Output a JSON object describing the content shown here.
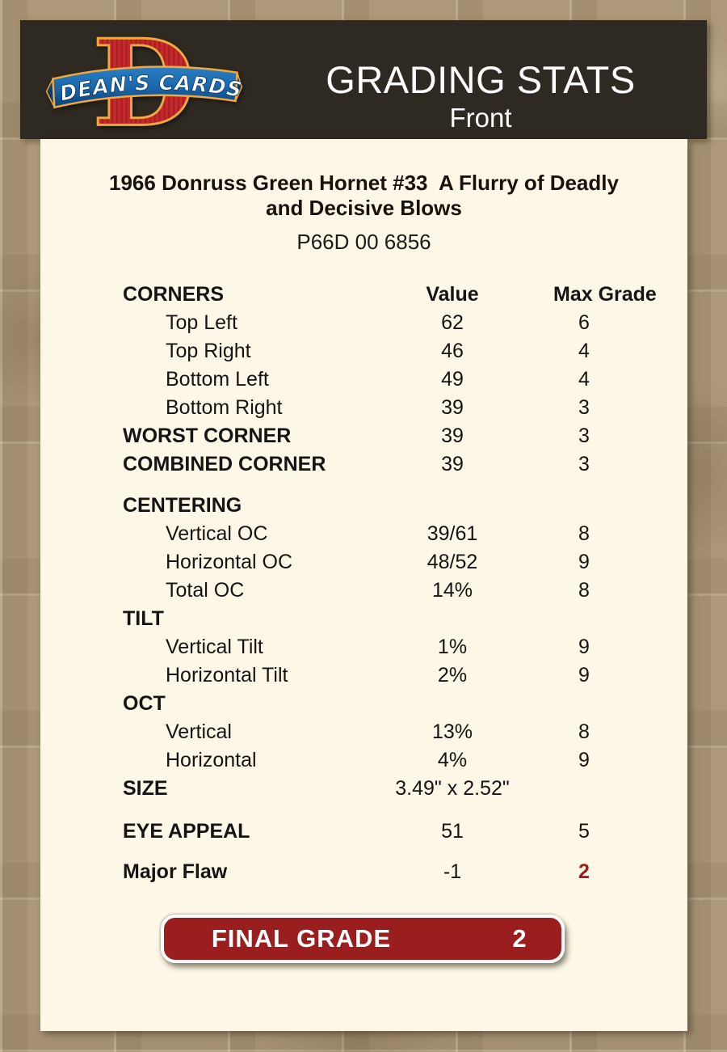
{
  "header": {
    "logo": {
      "text": "DEAN'S CARDS",
      "letter": "D"
    },
    "title": "GRADING STATS",
    "subtitle": "Front"
  },
  "card_info": {
    "title_line1": "1966 Donruss Green Hornet #33  A Flurry of Deadly",
    "title_line2": "and Decisive Blows",
    "serial": "P66D 00 6856"
  },
  "table": {
    "header": {
      "label": "CORNERS",
      "value": "Value",
      "max": "Max Grade"
    },
    "rows": [
      {
        "label": "Top Left",
        "value": "62",
        "max": "6",
        "indent": true
      },
      {
        "label": "Top Right",
        "value": "46",
        "max": "4",
        "indent": true
      },
      {
        "label": "Bottom Left",
        "value": "49",
        "max": "4",
        "indent": true
      },
      {
        "label": "Bottom Right",
        "value": "39",
        "max": "3",
        "indent": true
      },
      {
        "label": "WORST CORNER",
        "value": "39",
        "max": "3",
        "bold": true
      },
      {
        "label": "COMBINED CORNER",
        "value": "39",
        "max": "3",
        "bold": true
      },
      {
        "label": "CENTERING",
        "value": "",
        "max": "",
        "bold": true,
        "gap": 16
      },
      {
        "label": "Vertical OC",
        "value": "39/61",
        "max": "8",
        "indent": true
      },
      {
        "label": "Horizontal OC",
        "value": "48/52",
        "max": "9",
        "indent": true
      },
      {
        "label": "Total OC",
        "value": "14%",
        "max": "8",
        "indent": true
      },
      {
        "label": "TILT",
        "value": "",
        "max": "",
        "bold": true
      },
      {
        "label": "Vertical Tilt",
        "value": "1%",
        "max": "9",
        "indent": true
      },
      {
        "label": "Horizontal Tilt",
        "value": "2%",
        "max": "9",
        "indent": true
      },
      {
        "label": "OCT",
        "value": "",
        "max": "",
        "bold": true
      },
      {
        "label": "Vertical",
        "value": "13%",
        "max": "8",
        "indent": true
      },
      {
        "label": "Horizontal",
        "value": "4%",
        "max": "9",
        "indent": true
      },
      {
        "label": "SIZE",
        "value": "3.49\" x 2.52\"",
        "max": "",
        "bold": true
      },
      {
        "label": "EYE APPEAL",
        "value": "51",
        "max": "5",
        "bold": true,
        "gap": 18
      },
      {
        "label": "Major Flaw",
        "value": "-1",
        "max": "2",
        "bold": true,
        "gap": 15,
        "max_red": true
      }
    ]
  },
  "final_grade": {
    "label": "FINAL GRADE",
    "value": "2"
  },
  "colors": {
    "background_tan": "#ad9979",
    "header_brown": "#2f2a21",
    "card_cream": "#fcf7e6",
    "grade_red": "#9b1e1e",
    "logo_red": "#c5292c",
    "logo_gold": "#f0a93f",
    "ribbon_blue": "#1a67ad"
  }
}
